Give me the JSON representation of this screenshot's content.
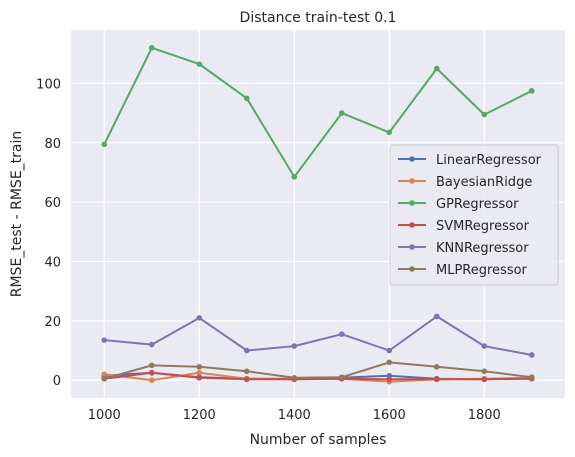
{
  "chart_data": {
    "type": "line",
    "title": "Distance train-test 0.1",
    "xlabel": "Number of samples",
    "ylabel": "RMSE_test - RMSE_train",
    "x": [
      1000,
      1100,
      1200,
      1300,
      1400,
      1500,
      1600,
      1700,
      1800,
      1900
    ],
    "xlim": [
      930,
      1970
    ],
    "ylim": [
      -6,
      118
    ],
    "xticks": [
      1000,
      1200,
      1400,
      1600,
      1800
    ],
    "yticks": [
      0,
      20,
      40,
      60,
      80,
      100
    ],
    "grid": true,
    "legend_position": "center-right",
    "series": [
      {
        "name": "LinearRegressor",
        "color": "#4c72b0",
        "values": [
          1.5,
          2.5,
          1.0,
          0.5,
          0.5,
          0.8,
          1.5,
          0.5,
          0.3,
          0.8
        ]
      },
      {
        "name": "BayesianRidge",
        "color": "#dd8452",
        "values": [
          2.0,
          0.0,
          2.5,
          0.5,
          0.3,
          0.5,
          -0.5,
          0.3,
          0.5,
          0.8
        ]
      },
      {
        "name": "GPRegressor",
        "color": "#55a868",
        "values": [
          79.5,
          112.0,
          106.5,
          95.0,
          68.5,
          90.0,
          83.5,
          105.0,
          89.5,
          97.5
        ]
      },
      {
        "name": "SVMRegressor",
        "color": "#c44e52",
        "values": [
          0.5,
          2.5,
          0.8,
          0.3,
          0.3,
          0.5,
          0.3,
          0.3,
          0.3,
          0.5
        ]
      },
      {
        "name": "KNNRegressor",
        "color": "#8172b3",
        "values": [
          13.5,
          12.0,
          21.0,
          10.0,
          11.5,
          15.5,
          10.0,
          21.5,
          11.5,
          8.5
        ]
      },
      {
        "name": "MLPRegressor",
        "color": "#937860",
        "values": [
          0.5,
          5.0,
          4.5,
          3.0,
          0.8,
          1.0,
          6.0,
          4.5,
          3.0,
          1.0
        ]
      }
    ]
  }
}
